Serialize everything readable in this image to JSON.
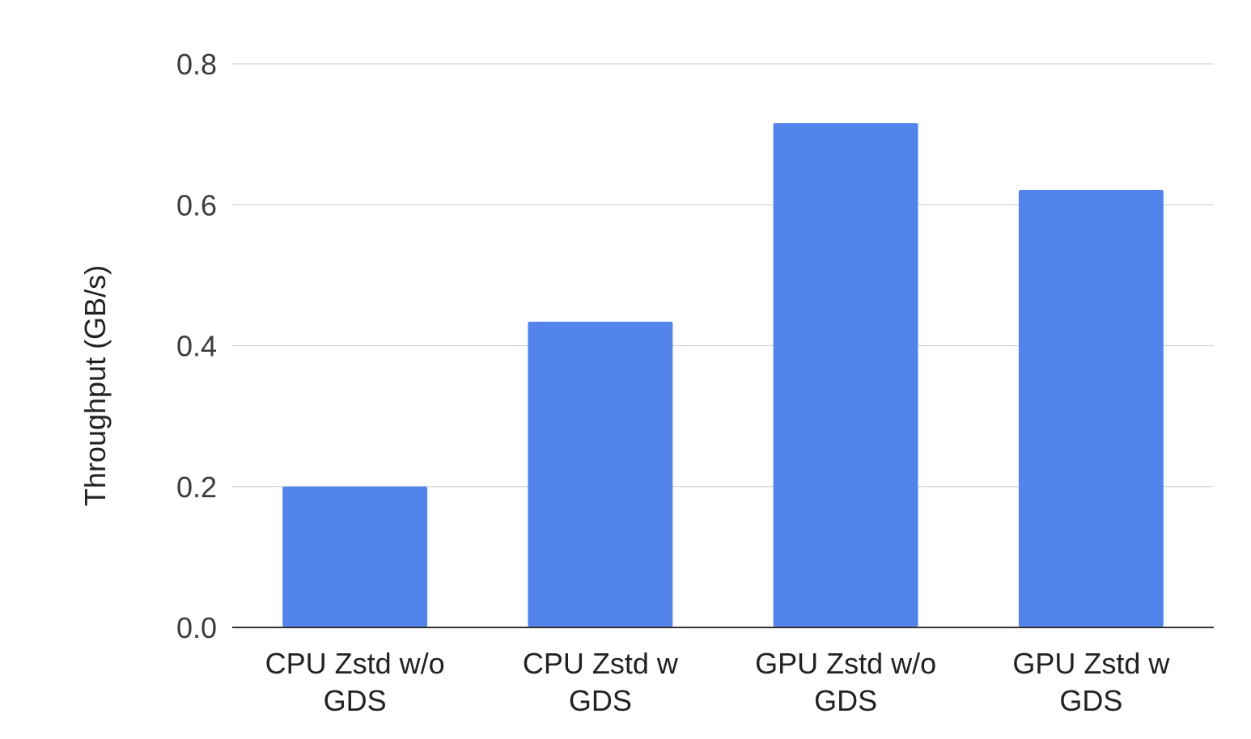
{
  "chart_data": {
    "type": "bar",
    "title": "",
    "xlabel": "",
    "ylabel": "Throughput (GB/s)",
    "categories": [
      [
        "CPU Zstd w/o",
        "GDS"
      ],
      [
        "CPU Zstd w",
        "GDS"
      ],
      [
        "GPU Zstd w/o",
        "GDS"
      ],
      [
        "GPU Zstd w",
        "GDS"
      ]
    ],
    "values": [
      0.2,
      0.434,
      0.716,
      0.621
    ],
    "ylim": [
      0,
      0.8
    ],
    "yticks": [
      "0.0",
      "0.2",
      "0.4",
      "0.6",
      "0.8"
    ],
    "grid": true,
    "legend": "none",
    "bar_color": "#5384ec"
  }
}
